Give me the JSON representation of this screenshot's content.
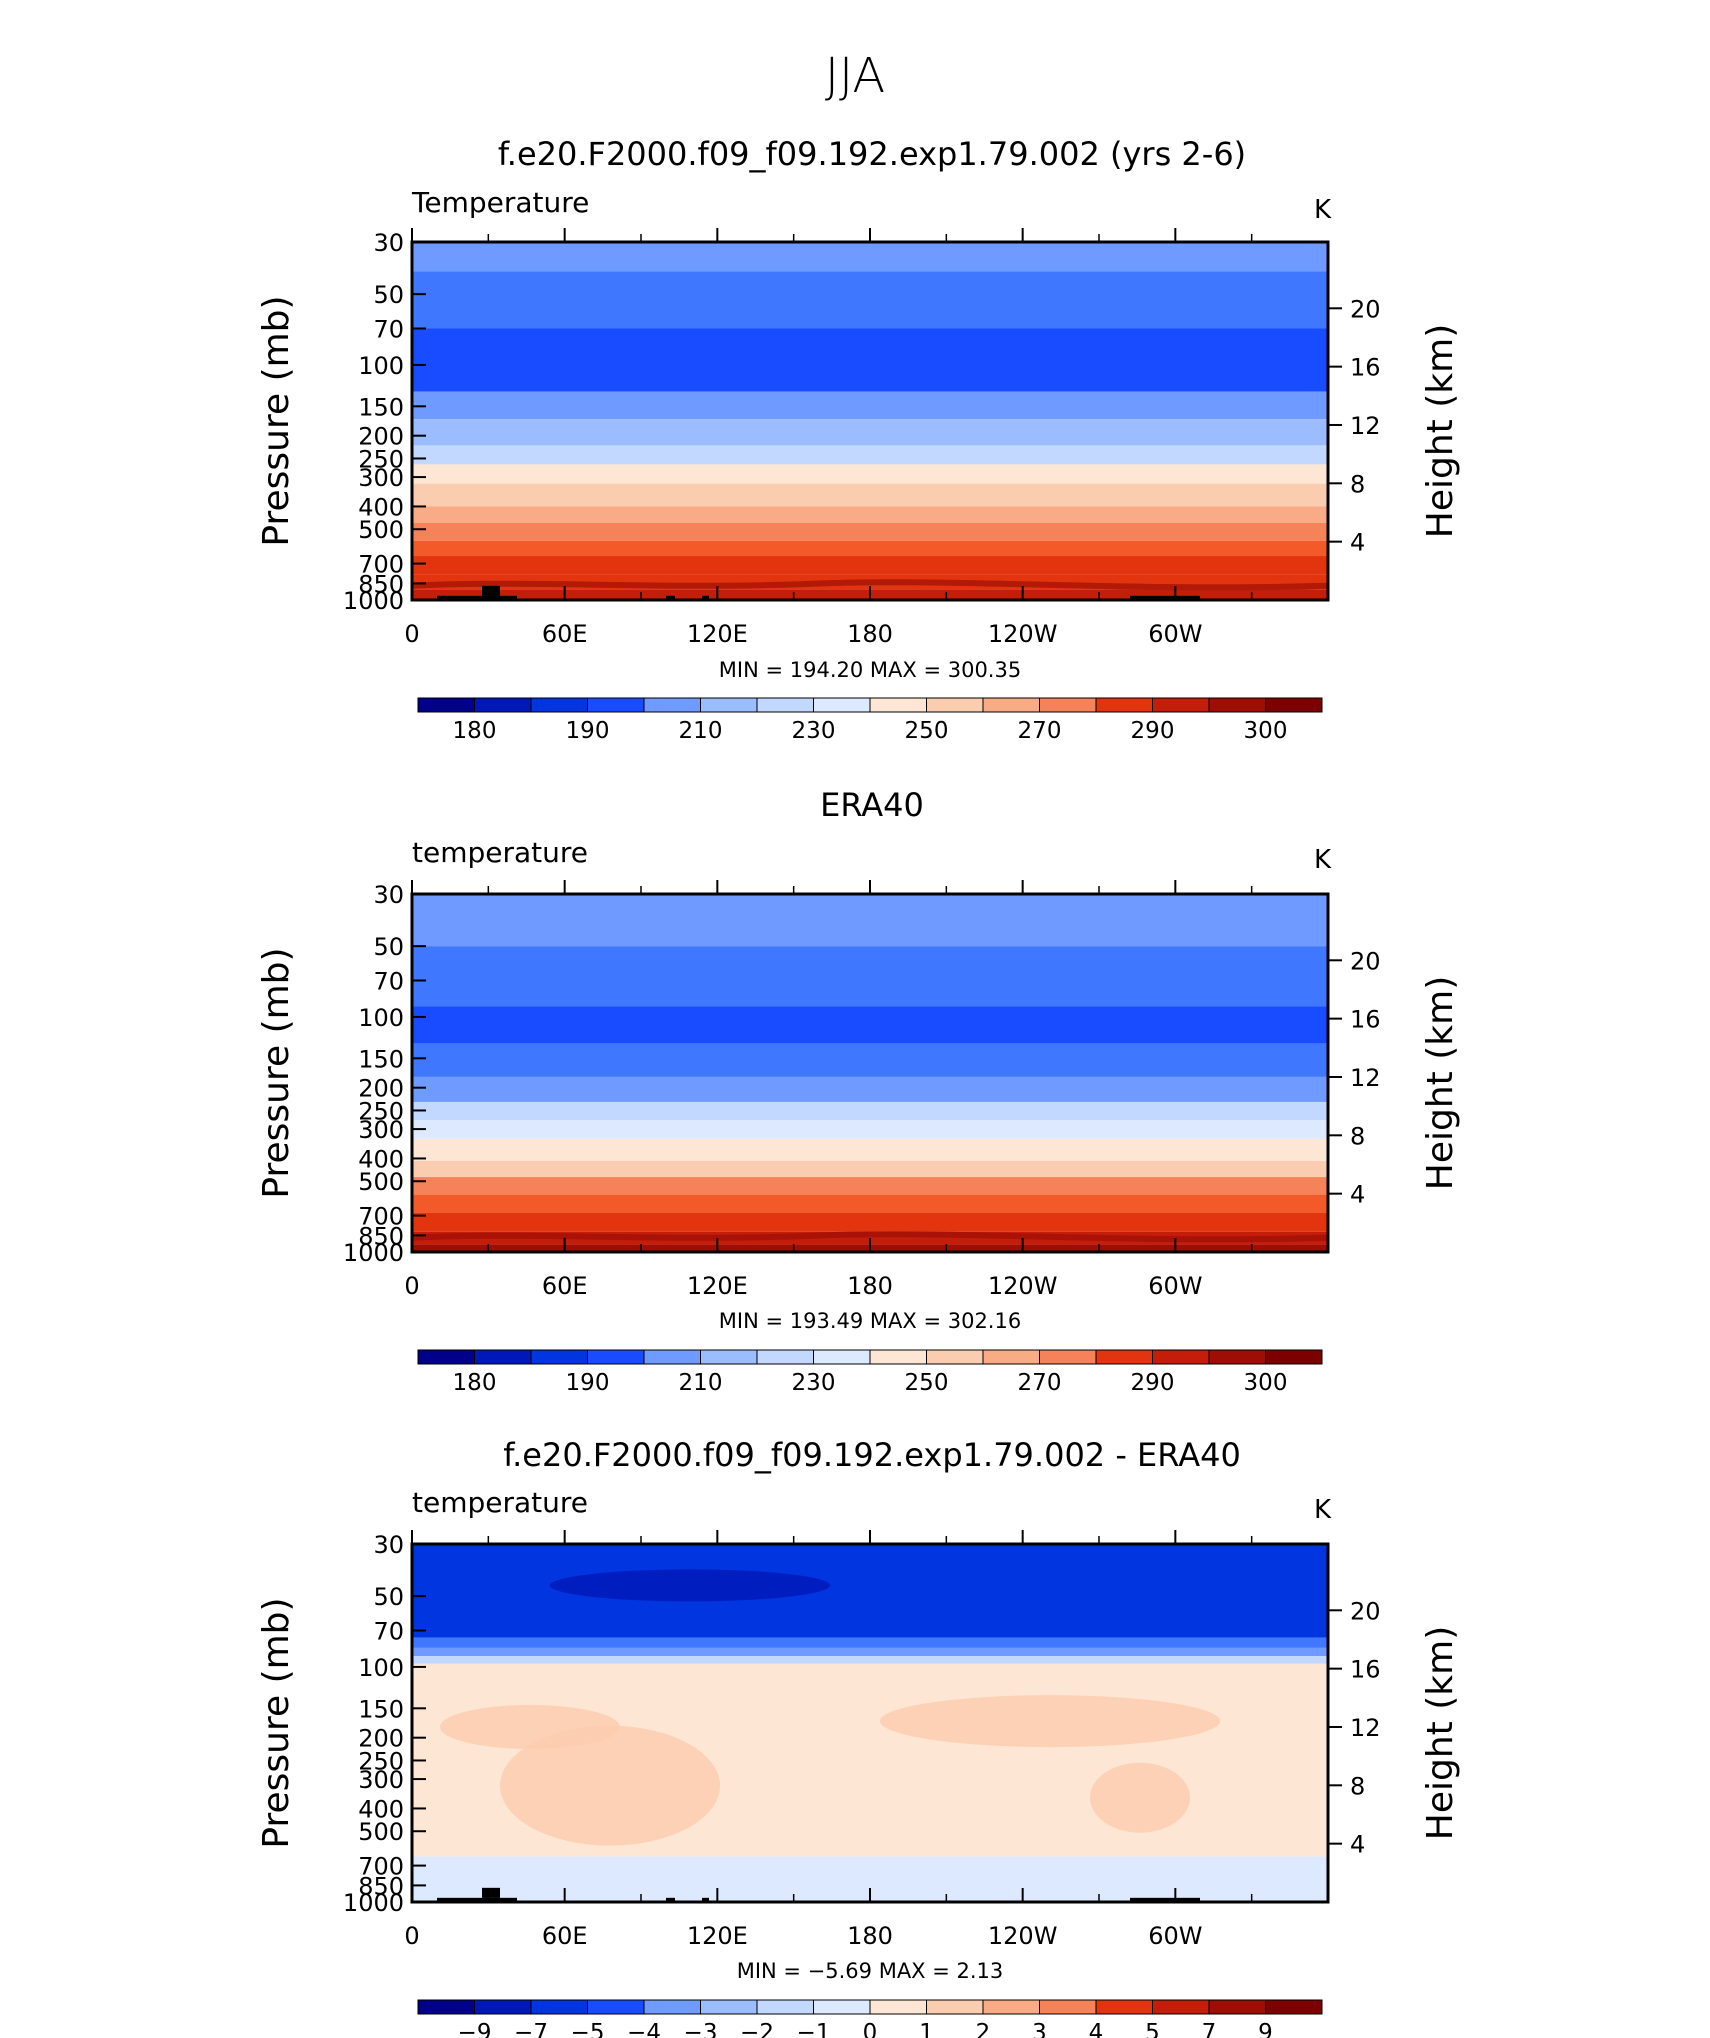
{
  "figure": {
    "title": "JJA"
  },
  "chart_data": [
    {
      "type": "heatmap",
      "title": "f.e20.F2000.f09_f09.192.exp1.79.002 (yrs 2-6)",
      "field_label": "Temperature",
      "units": "K",
      "ylabel": "Pressure (mb)",
      "ylabel_right": "Height (km)",
      "stats": {
        "min_label": "MIN",
        "min": "194.20",
        "max_label": "MAX",
        "max": "300.35"
      },
      "x_ticks": [
        "0",
        "60E",
        "120E",
        "180",
        "120W",
        "60W"
      ],
      "y_ticks": [
        "30",
        "50",
        "70",
        "100",
        "150",
        "200",
        "250",
        "300",
        "400",
        "500",
        "700",
        "850",
        "1000"
      ],
      "y_ticks_right": [
        "20",
        "16",
        "12",
        "8",
        "4"
      ],
      "colorbar_labels": [
        "180",
        "190",
        "210",
        "230",
        "250",
        "270",
        "290",
        "300"
      ],
      "levels": [
        {
          "p_top": 30,
          "p_bot": 40,
          "value": 215
        },
        {
          "p_top": 40,
          "p_bot": 70,
          "value": 205
        },
        {
          "p_top": 70,
          "p_bot": 130,
          "value": 200
        },
        {
          "p_top": 130,
          "p_bot": 170,
          "value": 210
        },
        {
          "p_top": 170,
          "p_bot": 220,
          "value": 220
        },
        {
          "p_top": 220,
          "p_bot": 265,
          "value": 230
        },
        {
          "p_top": 265,
          "p_bot": 320,
          "value": 240
        },
        {
          "p_top": 320,
          "p_bot": 400,
          "value": 250
        },
        {
          "p_top": 400,
          "p_bot": 470,
          "value": 260
        },
        {
          "p_top": 470,
          "p_bot": 560,
          "value": 270
        },
        {
          "p_top": 560,
          "p_bot": 650,
          "value": 275
        },
        {
          "p_top": 650,
          "p_bot": 780,
          "value": 280
        },
        {
          "p_top": 780,
          "p_bot": 900,
          "value": 285
        },
        {
          "p_top": 900,
          "p_bot": 1000,
          "value": 290
        }
      ]
    },
    {
      "type": "heatmap",
      "title": "ERA40",
      "field_label": "temperature",
      "units": "K",
      "ylabel": "Pressure (mb)",
      "ylabel_right": "Height (km)",
      "stats": {
        "min_label": "MIN",
        "min": "193.49",
        "max_label": "MAX",
        "max": "302.16"
      },
      "x_ticks": [
        "0",
        "60E",
        "120E",
        "180",
        "120W",
        "60W"
      ],
      "y_ticks": [
        "30",
        "50",
        "70",
        "100",
        "150",
        "200",
        "250",
        "300",
        "400",
        "500",
        "700",
        "850",
        "1000"
      ],
      "y_ticks_right": [
        "20",
        "16",
        "12",
        "8",
        "4"
      ],
      "colorbar_labels": [
        "180",
        "190",
        "210",
        "230",
        "250",
        "270",
        "290",
        "300"
      ],
      "levels": [
        {
          "p_top": 30,
          "p_bot": 50,
          "value": 215
        },
        {
          "p_top": 50,
          "p_bot": 90,
          "value": 205
        },
        {
          "p_top": 90,
          "p_bot": 130,
          "value": 200
        },
        {
          "p_top": 130,
          "p_bot": 180,
          "value": 205
        },
        {
          "p_top": 180,
          "p_bot": 230,
          "value": 215
        },
        {
          "p_top": 230,
          "p_bot": 275,
          "value": 225
        },
        {
          "p_top": 275,
          "p_bot": 330,
          "value": 235
        },
        {
          "p_top": 330,
          "p_bot": 410,
          "value": 245
        },
        {
          "p_top": 410,
          "p_bot": 480,
          "value": 255
        },
        {
          "p_top": 480,
          "p_bot": 570,
          "value": 265
        },
        {
          "p_top": 570,
          "p_bot": 680,
          "value": 275
        },
        {
          "p_top": 680,
          "p_bot": 820,
          "value": 285
        },
        {
          "p_top": 820,
          "p_bot": 930,
          "value": 290
        },
        {
          "p_top": 930,
          "p_bot": 1000,
          "value": 295
        }
      ]
    },
    {
      "type": "heatmap",
      "title": "f.e20.F2000.f09_f09.192.exp1.79.002 - ERA40",
      "field_label": "temperature",
      "units": "K",
      "ylabel": "Pressure (mb)",
      "ylabel_right": "Height (km)",
      "stats": {
        "min_label": "MIN",
        "min": "−5.69",
        "max_label": "MAX",
        "max": "2.13"
      },
      "x_ticks": [
        "0",
        "60E",
        "120E",
        "180",
        "120W",
        "60W"
      ],
      "y_ticks": [
        "30",
        "50",
        "70",
        "100",
        "150",
        "200",
        "250",
        "300",
        "400",
        "500",
        "700",
        "850",
        "1000"
      ],
      "y_ticks_right": [
        "20",
        "16",
        "12",
        "8",
        "4"
      ],
      "colorbar_labels": [
        "−9",
        "−7",
        "−5",
        "−4",
        "−3",
        "−2",
        "−1",
        "0",
        "1",
        "2",
        "3",
        "4",
        "5",
        "7",
        "9"
      ],
      "levels": [
        {
          "p_top": 30,
          "p_bot": 75,
          "value": -5
        },
        {
          "p_top": 75,
          "p_bot": 83,
          "value": -3
        },
        {
          "p_top": 83,
          "p_bot": 90,
          "value": -2
        },
        {
          "p_top": 90,
          "p_bot": 97,
          "value": -1
        },
        {
          "p_top": 97,
          "p_bot": 640,
          "value": 0.5
        },
        {
          "p_top": 640,
          "p_bot": 1000,
          "value": -0.5
        }
      ]
    }
  ],
  "colors": {
    "blue_red_scale": [
      "#00008b",
      "#0018b8",
      "#0035e0",
      "#1a4cff",
      "#3f77ff",
      "#6f9aff",
      "#9bbcff",
      "#c3d8ff",
      "#dde9ff",
      "#fde7d4",
      "#fbcdb0",
      "#f8ab84",
      "#f6825a",
      "#f35a2a",
      "#e2350f",
      "#c41d0a",
      "#9e0e04",
      "#7d0000"
    ],
    "frame": "#000000",
    "terrain": "#000000"
  }
}
